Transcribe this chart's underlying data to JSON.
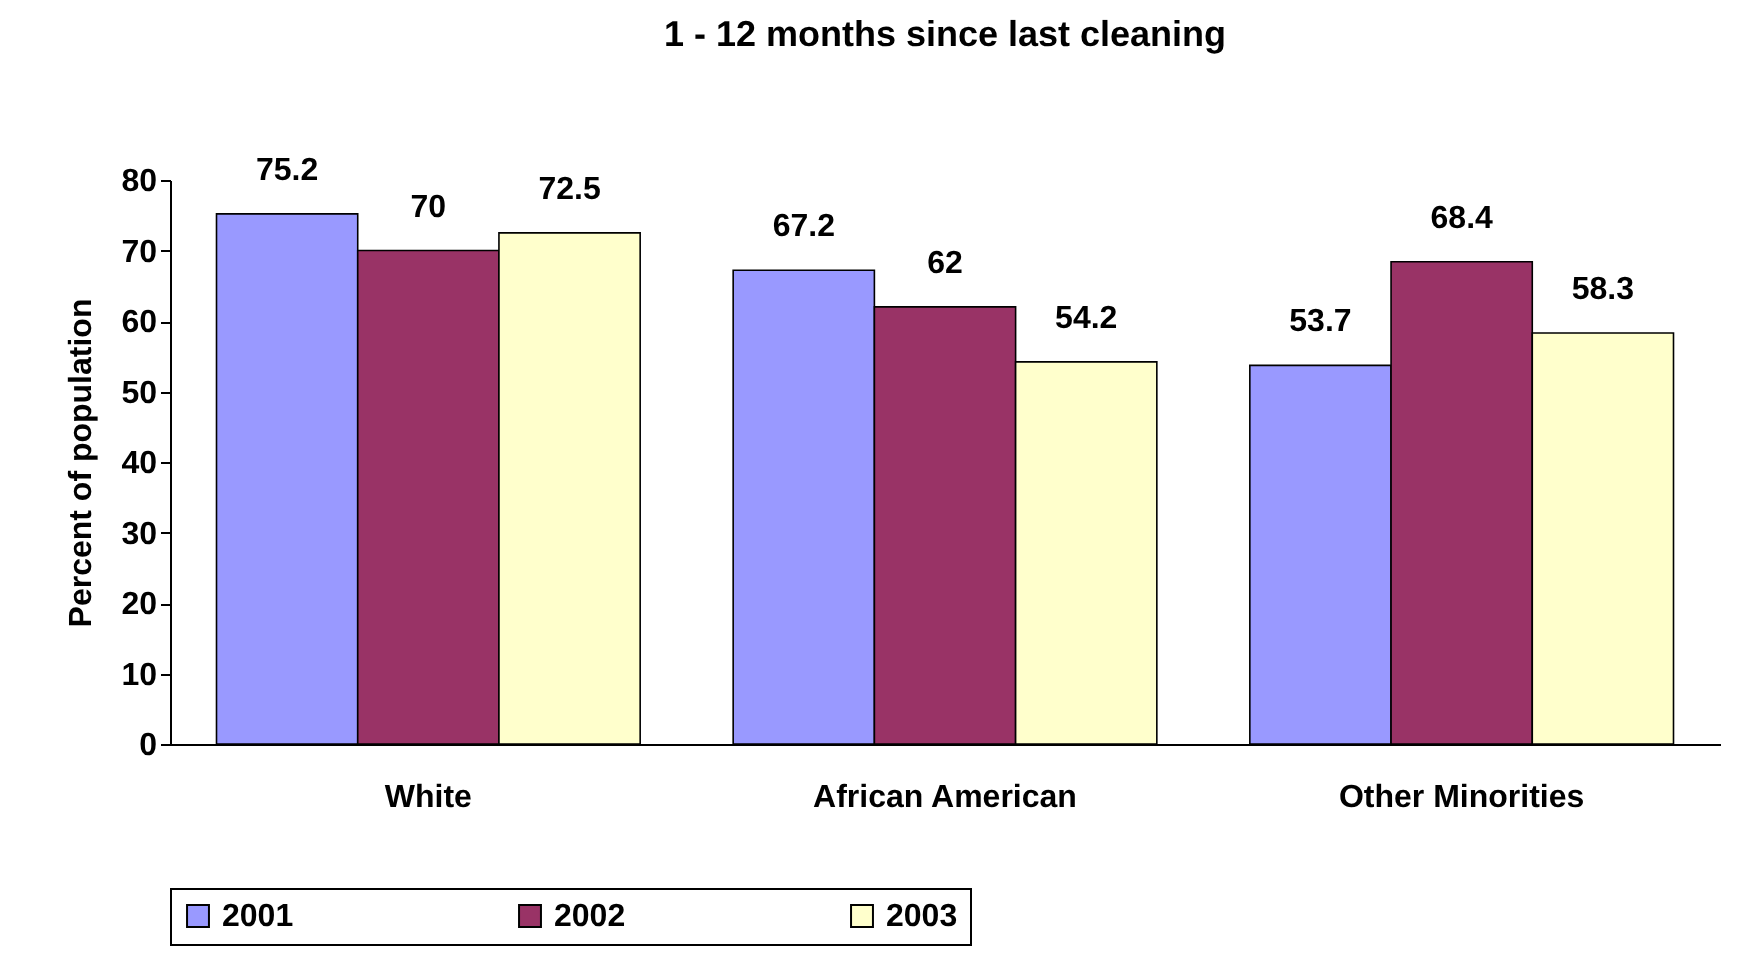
{
  "chart_data": {
    "type": "bar",
    "title": "1 - 12 months since last cleaning",
    "ylabel": "Percent of population",
    "categories": [
      "White",
      "African American",
      "Other Minorities"
    ],
    "series": [
      {
        "name": "2001",
        "color": "#9999ff",
        "values": [
          75.2,
          67.2,
          53.7
        ]
      },
      {
        "name": "2002",
        "color": "#993366",
        "values": [
          70,
          62,
          68.4
        ]
      },
      {
        "name": "2003",
        "color": "#ffffcc",
        "values": [
          72.5,
          54.2,
          58.3
        ]
      }
    ],
    "ylim": [
      0,
      80
    ],
    "yticks": [
      0,
      10,
      20,
      30,
      40,
      50,
      60,
      70,
      80
    ],
    "grid": false,
    "legend": "bottom",
    "data_labels": true
  }
}
